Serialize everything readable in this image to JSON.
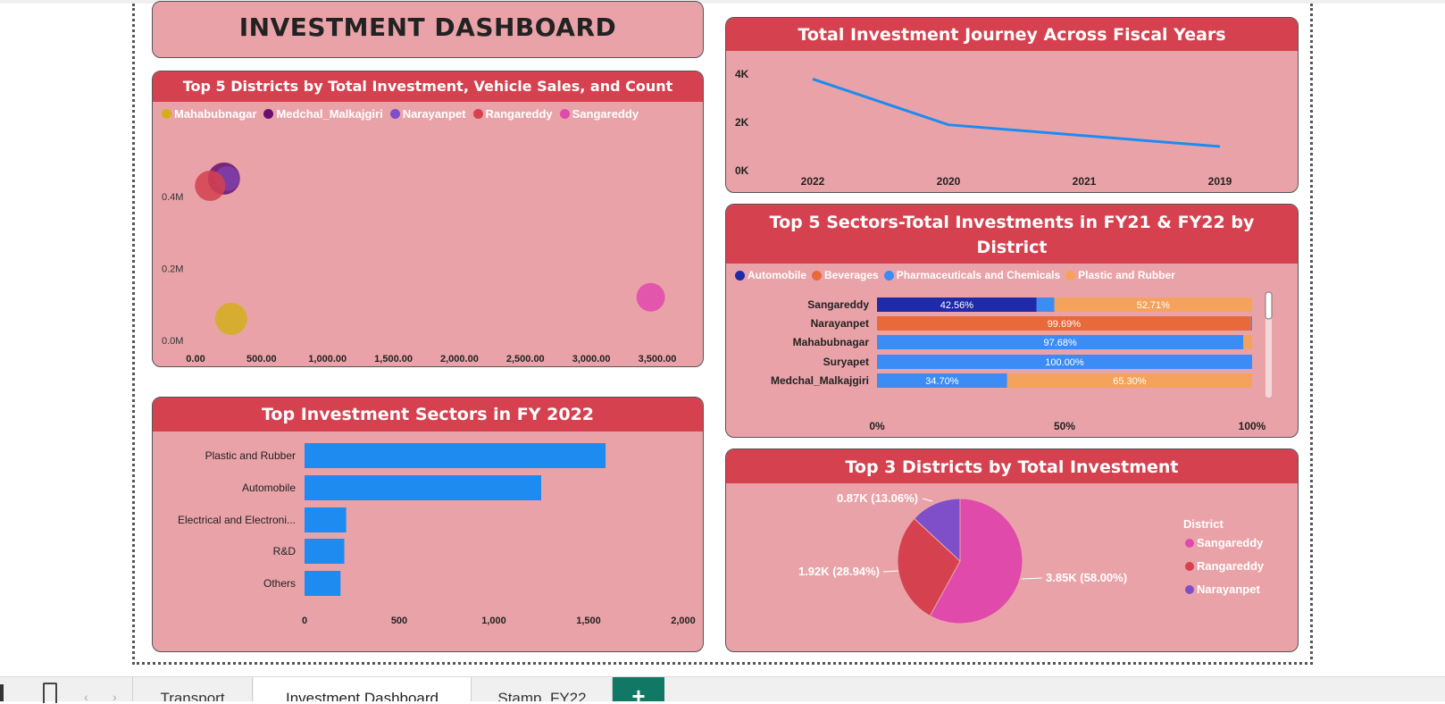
{
  "dashboard": {
    "title": "INVESTMENT DASHBOARD"
  },
  "scatter": {
    "title": "Top 5 Districts by Total Investment, Vehicle Sales, and Count",
    "legend": [
      {
        "name": "Mahabubnagar",
        "color": "#d4af1c"
      },
      {
        "name": "Medchal_Malkajgiri",
        "color": "#6a0f6e"
      },
      {
        "name": "Narayanpet",
        "color": "#7e4fc9"
      },
      {
        "name": "Rangareddy",
        "color": "#d5414f"
      },
      {
        "name": "Sangareddy",
        "color": "#e04aab"
      }
    ],
    "x_ticks": [
      "0.00",
      "500.00",
      "1,000.00",
      "1,500.00",
      "2,000.00",
      "2,500.00",
      "3,000.00",
      "3,500.00"
    ],
    "y_ticks": [
      "0.0M",
      "0.2M",
      "0.4M"
    ]
  },
  "line": {
    "title": "Total Investment Journey Across Fiscal Years",
    "y_ticks": [
      "0K",
      "2K",
      "4K"
    ]
  },
  "stacked": {
    "title": "Top 5 Sectors-Total Investments in FY21 & FY22 by District",
    "legend": [
      {
        "name": "Automobile",
        "color": "#1f2aa8"
      },
      {
        "name": "Beverages",
        "color": "#e8693a"
      },
      {
        "name": "Pharmaceuticals and Chemicals",
        "color": "#3b8cf5"
      },
      {
        "name": "Plastic and Rubber",
        "color": "#f5a35c"
      }
    ],
    "x_ticks": [
      "0%",
      "50%",
      "100%"
    ]
  },
  "bars": {
    "title": "Top Investment Sectors in FY 2022",
    "x_ticks": [
      "0",
      "500",
      "1,000",
      "1,500",
      "2,000"
    ]
  },
  "pie": {
    "title": "Top 3 Districts by Total Investment",
    "legend_title": "District"
  },
  "tabs": [
    {
      "label": "Transport"
    },
    {
      "label": "Investment Dashboard"
    },
    {
      "label": "Stamp_FY22"
    }
  ],
  "add_tab_label": "+",
  "chart_data": [
    {
      "type": "scatter",
      "title": "Top 5 Districts by Total Investment, Vehicle Sales, and Count",
      "xlim": [
        0,
        3500
      ],
      "ylim": [
        0,
        0.45
      ],
      "y_unit": "M",
      "series": [
        {
          "name": "Mahabubnagar",
          "x": 270,
          "y": 0.06,
          "color": "#d4af1c"
        },
        {
          "name": "Medchal_Malkajgiri",
          "x": 215,
          "y": 0.45,
          "color": "#6a0f6e"
        },
        {
          "name": "Narayanpet",
          "x": 240,
          "y": 0.45,
          "color": "#7e4fc9"
        },
        {
          "name": "Rangareddy",
          "x": 110,
          "y": 0.43,
          "color": "#d5414f"
        },
        {
          "name": "Sangareddy",
          "x": 3450,
          "y": 0.12,
          "color": "#e04aab"
        }
      ]
    },
    {
      "type": "line",
      "title": "Total Investment Journey Across Fiscal Years",
      "categories": [
        "2022",
        "2020",
        "2021",
        "2019"
      ],
      "values": [
        3800,
        1900,
        1450,
        1000
      ],
      "ylim": [
        0,
        4000
      ],
      "color": "#1e8bf0"
    },
    {
      "type": "bar",
      "stacked_percent": true,
      "title": "Top 5 Sectors-Total Investments in FY21 & FY22 by District",
      "categories": [
        "Sangareddy",
        "Narayanpet",
        "Mahabubnagar",
        "Suryapet",
        "Medchal_Malkajgiri"
      ],
      "series": [
        {
          "name": "Automobile",
          "values": [
            42.56,
            0,
            0,
            0,
            0
          ],
          "labels": [
            "42.56%",
            "",
            "",
            "",
            ""
          ]
        },
        {
          "name": "Beverages",
          "values": [
            0,
            99.69,
            0,
            0,
            0
          ],
          "labels": [
            "",
            "99.69%",
            "",
            "",
            ""
          ]
        },
        {
          "name": "Pharmaceuticals and Chemicals",
          "values": [
            4.73,
            0.31,
            97.68,
            100.0,
            34.7
          ],
          "labels": [
            "",
            "",
            "97.68%",
            "100.00%",
            "34.70%"
          ]
        },
        {
          "name": "Plastic and Rubber",
          "values": [
            52.71,
            0,
            2.32,
            0,
            65.3
          ],
          "labels": [
            "52.71%",
            "",
            "",
            "",
            "65.30%"
          ]
        }
      ]
    },
    {
      "type": "bar",
      "orientation": "horizontal",
      "title": "Top Investment Sectors in FY 2022",
      "categories": [
        "Plastic and Rubber",
        "Automobile",
        "Electrical and Electroni...",
        "R&D",
        "Others"
      ],
      "values": [
        1590,
        1250,
        220,
        210,
        190
      ],
      "xlim": [
        0,
        2000
      ],
      "color": "#1e8bf0"
    },
    {
      "type": "pie",
      "title": "Top 3 Districts by Total Investment",
      "slices": [
        {
          "name": "Sangareddy",
          "value": 3.85,
          "label": "3.85K (58.00%)",
          "color": "#e04aab"
        },
        {
          "name": "Rangareddy",
          "value": 1.92,
          "label": "1.92K (28.94%)",
          "color": "#d5414f"
        },
        {
          "name": "Narayanpet",
          "value": 0.87,
          "label": "0.87K (13.06%)",
          "color": "#7e4fc9"
        }
      ]
    }
  ]
}
